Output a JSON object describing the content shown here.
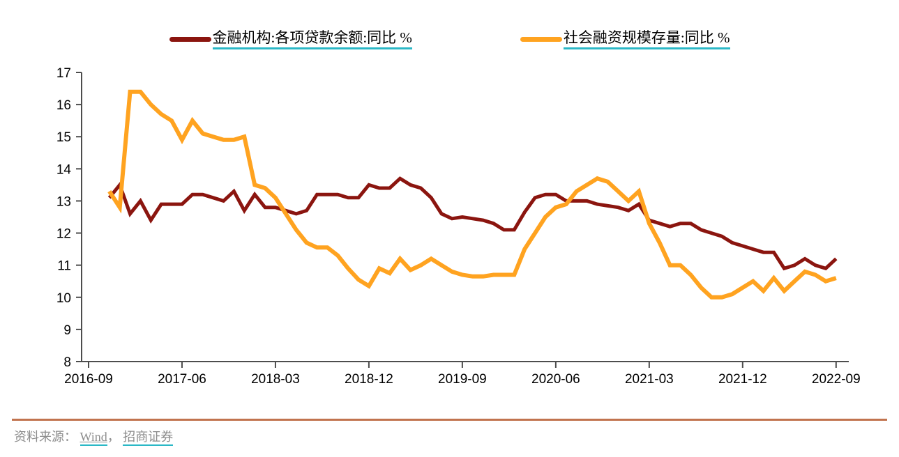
{
  "colors": {
    "loan_line": "#8B150F",
    "tsf_line": "#FFA320",
    "link_underline": "#2BB8C6",
    "divider": "#C1734E",
    "footer_text": "#8C8C8C",
    "axis": "#4D4D4D"
  },
  "footer": {
    "source_prefix": "资料来源：",
    "source_links": [
      "Wind",
      "招商证券"
    ],
    "separator": "，"
  },
  "chart_data": {
    "type": "line",
    "title": "",
    "x_frequency": "monthly",
    "x_range": [
      "2016-11",
      "2022-09"
    ],
    "x_tick_labels": [
      "2016-09",
      "2017-06",
      "2018-03",
      "2018-12",
      "2019-09",
      "2020-06",
      "2021-03",
      "2021-12",
      "2022-09"
    ],
    "x_tick_step_months": 9,
    "y_ticks": [
      17,
      16,
      15,
      14,
      13,
      12,
      11,
      10,
      9,
      8
    ],
    "ylim": [
      8,
      17
    ],
    "grid": false,
    "legend_position": "top-center",
    "series": [
      {
        "name": "金融机构:各项贷款余额:同比 %",
        "color": "#8B150F",
        "values": [
          13.1,
          13.5,
          12.6,
          13.0,
          12.4,
          12.9,
          12.9,
          12.9,
          13.2,
          13.2,
          13.1,
          13.0,
          13.3,
          12.7,
          13.2,
          12.8,
          12.8,
          12.7,
          12.6,
          12.7,
          13.2,
          13.2,
          13.2,
          13.1,
          13.1,
          13.5,
          13.4,
          13.4,
          13.7,
          13.5,
          13.4,
          13.1,
          12.6,
          12.45,
          12.5,
          12.45,
          12.4,
          12.3,
          12.1,
          12.1,
          12.65,
          13.1,
          13.2,
          13.2,
          13.0,
          13.0,
          13.0,
          12.9,
          12.85,
          12.8,
          12.7,
          12.9,
          12.4,
          12.3,
          12.2,
          12.3,
          12.3,
          12.1,
          12.0,
          11.9,
          11.7,
          11.6,
          11.5,
          11.4,
          11.4,
          10.9,
          11.0,
          11.2,
          11.0,
          10.9,
          11.2
        ]
      },
      {
        "name": "社会融资规模存量:同比 %",
        "color": "#FFA320",
        "values": [
          13.3,
          12.8,
          16.4,
          16.4,
          16.0,
          15.7,
          15.5,
          14.9,
          15.5,
          15.1,
          15.0,
          14.9,
          14.9,
          15.0,
          13.5,
          13.4,
          13.1,
          12.6,
          12.1,
          11.7,
          11.55,
          11.55,
          11.3,
          10.9,
          10.55,
          10.35,
          10.9,
          10.75,
          11.2,
          10.85,
          11.0,
          11.2,
          11.0,
          10.8,
          10.7,
          10.65,
          10.65,
          10.7,
          10.7,
          10.7,
          11.5,
          12.0,
          12.5,
          12.8,
          12.9,
          13.3,
          13.5,
          13.7,
          13.6,
          13.3,
          13.0,
          13.3,
          12.3,
          11.7,
          11.0,
          11.0,
          10.7,
          10.3,
          10.0,
          10.0,
          10.1,
          10.3,
          10.5,
          10.2,
          10.6,
          10.2,
          10.5,
          10.8,
          10.7,
          10.5,
          10.6
        ]
      }
    ]
  }
}
